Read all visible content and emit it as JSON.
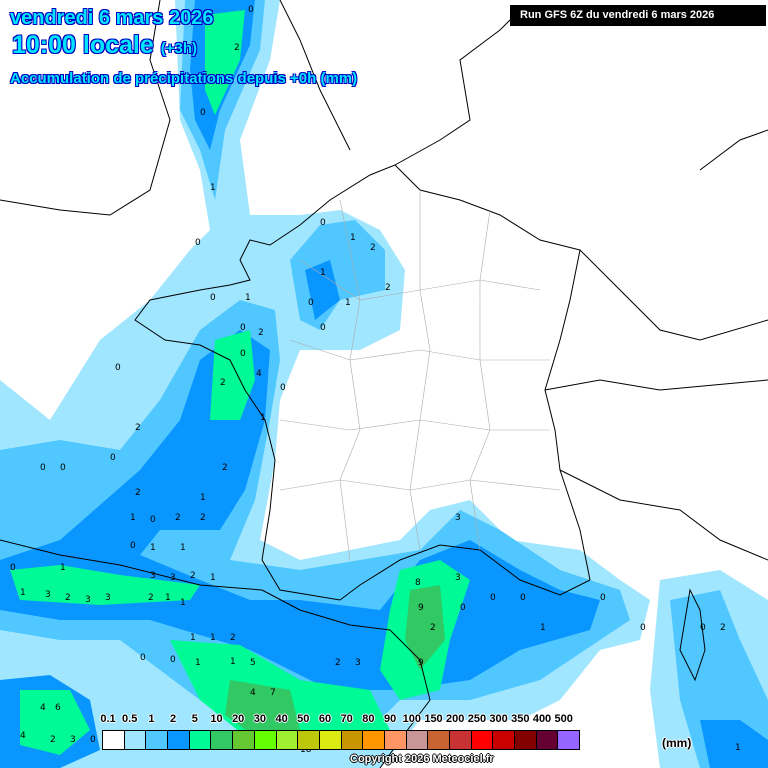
{
  "header": {
    "date": "vendredi 6 mars 2026",
    "time": "10:00 locale",
    "offset": "(+3h)",
    "subtitle": "Accumulation de précipitations depuis +0h (mm)",
    "run": "Run GFS 6Z du vendredi 6 mars 2026"
  },
  "legend": {
    "unit": "(mm)",
    "labels": [
      "0.1",
      "0.5",
      "1",
      "2",
      "5",
      "10",
      "20",
      "30",
      "40",
      "50",
      "60",
      "70",
      "80",
      "90",
      "100",
      "150",
      "200",
      "250",
      "300",
      "350",
      "400",
      "500"
    ],
    "colors": [
      "#ffffff",
      "#a0e6ff",
      "#50c8ff",
      "#0a96ff",
      "#00fa96",
      "#32c864",
      "#64c832",
      "#64ff00",
      "#a0f032",
      "#bec80a",
      "#dceb14",
      "#c89600",
      "#ff9600",
      "#ff9664",
      "#c89696",
      "#c86432",
      "#c83232",
      "#ff0000",
      "#c80000",
      "#820000",
      "#640032",
      "#9664ff"
    ]
  },
  "map": {
    "precip_values": [
      "0",
      "2",
      "0",
      "1",
      "0",
      "1",
      "2",
      "1",
      "0",
      "1",
      "2",
      "0",
      "0",
      "1",
      "0",
      "0",
      "1",
      "0",
      "2",
      "2",
      "0",
      "0",
      "2",
      "0",
      "4",
      "2",
      "1",
      "0",
      "0",
      "2",
      "1",
      "0",
      "2",
      "2",
      "0",
      "1",
      "1",
      "0",
      "1",
      "3",
      "1",
      "2",
      "3",
      "3",
      "2",
      "1",
      "1",
      "3",
      "3",
      "2",
      "1",
      "1",
      "1",
      "2",
      "1",
      "0",
      "0",
      "1",
      "5",
      "3",
      "8",
      "9",
      "3",
      "2",
      "0",
      "0",
      "0",
      "1",
      "2",
      "3",
      "4",
      "7",
      "9",
      "18",
      "4",
      "6",
      "4",
      "2",
      "3",
      "0",
      "1",
      "0",
      "2",
      "0",
      "0"
    ]
  },
  "footer": {
    "copyright": "Copyright 2026 Meteociel.fr"
  }
}
